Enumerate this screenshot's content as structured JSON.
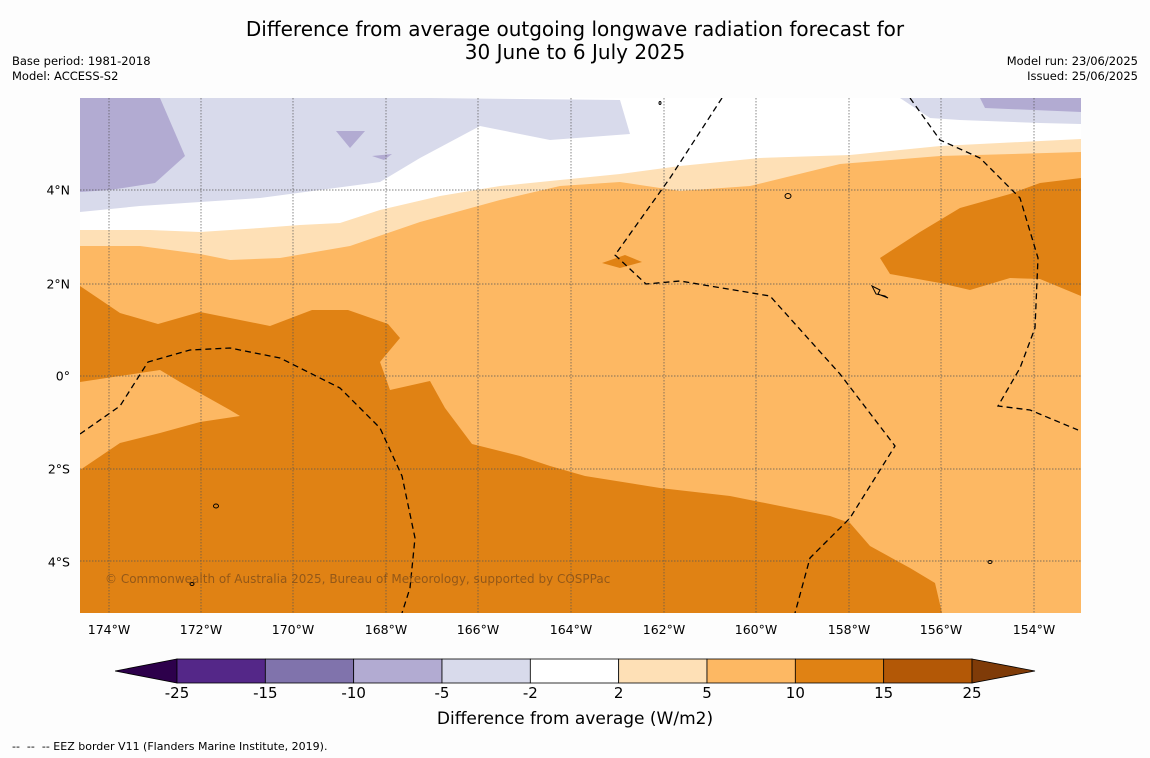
{
  "title": {
    "line1": "Difference from average outgoing longwave radiation forecast for",
    "line2": "30 June to 6 July 2025"
  },
  "meta_left": {
    "base_period": "Base period: 1981-2018",
    "model": "Model: ACCESS-S2"
  },
  "meta_right": {
    "model_run": "Model run: 23/06/2025",
    "issued": "Issued: 25/06/2025"
  },
  "map": {
    "lat_labels": [
      "4°N",
      "2°N",
      "0°",
      "2°S",
      "4°S"
    ],
    "lon_labels": [
      "174°W",
      "172°W",
      "170°W",
      "168°W",
      "166°W",
      "164°W",
      "162°W",
      "160°W",
      "158°W",
      "156°W",
      "154°W"
    ],
    "copyright": "© Commonwealth of Australia 2025, Bureau of Meteorology, supported by COSPPac"
  },
  "colorbar": {
    "ticks": [
      "-25",
      "-15",
      "-10",
      "-5",
      "-2",
      "2",
      "5",
      "10",
      "15",
      "25"
    ],
    "colors": [
      "#2d004b",
      "#542788",
      "#8073ac",
      "#b2abd2",
      "#d8daeb",
      "#ffffff",
      "#fee0b6",
      "#fdb863",
      "#e08214",
      "#b35806",
      "#7f3b08"
    ],
    "label": "Difference from average (W/m2)"
  },
  "footer": "--  --  -- EEZ border V11 (Flanders Marine Institute, 2019)."
}
